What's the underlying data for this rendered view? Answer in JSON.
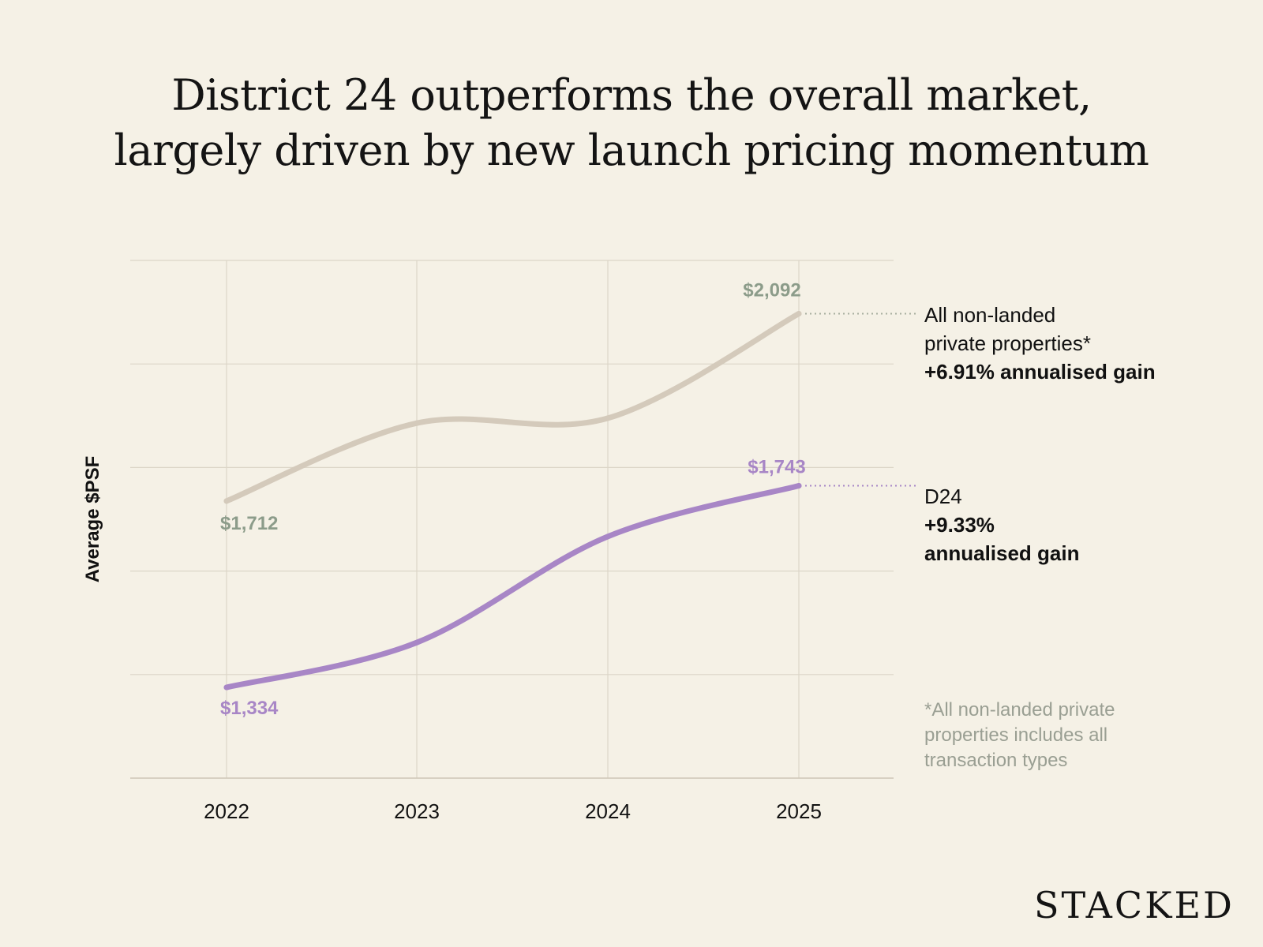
{
  "title": {
    "line1": "District 24 outperforms the overall market,",
    "line2": "largely driven by new launch pricing momentum"
  },
  "chart_data": {
    "type": "line",
    "x": [
      "2022",
      "2023",
      "2024",
      "2025"
    ],
    "ylabel": "Average $PSF",
    "grid": true,
    "series": [
      {
        "name": "All non-landed private properties*",
        "values": [
          1712,
          1870,
          1880,
          2092
        ],
        "color": "#d4cabb",
        "labels": {
          "start": "$1,712",
          "end": "$2,092"
        },
        "label_color": "#8c9c8a",
        "note": {
          "line1": "All non-landed",
          "line2": "private properties*",
          "gain": "+6.91% annualised gain"
        }
      },
      {
        "name": "D24",
        "values": [
          1334,
          1425,
          1640,
          1743
        ],
        "color": "#a886c6",
        "labels": {
          "start": "$1,334",
          "end": "$1,743"
        },
        "label_color": "#a886c6",
        "note": {
          "line1": "D24",
          "gain1": "+9.33%",
          "gain2": "annualised gain"
        }
      }
    ]
  },
  "footnote": {
    "line1": "*All non-landed private",
    "line2": "properties includes all",
    "line3": "transaction types"
  },
  "brand": "STACKED"
}
